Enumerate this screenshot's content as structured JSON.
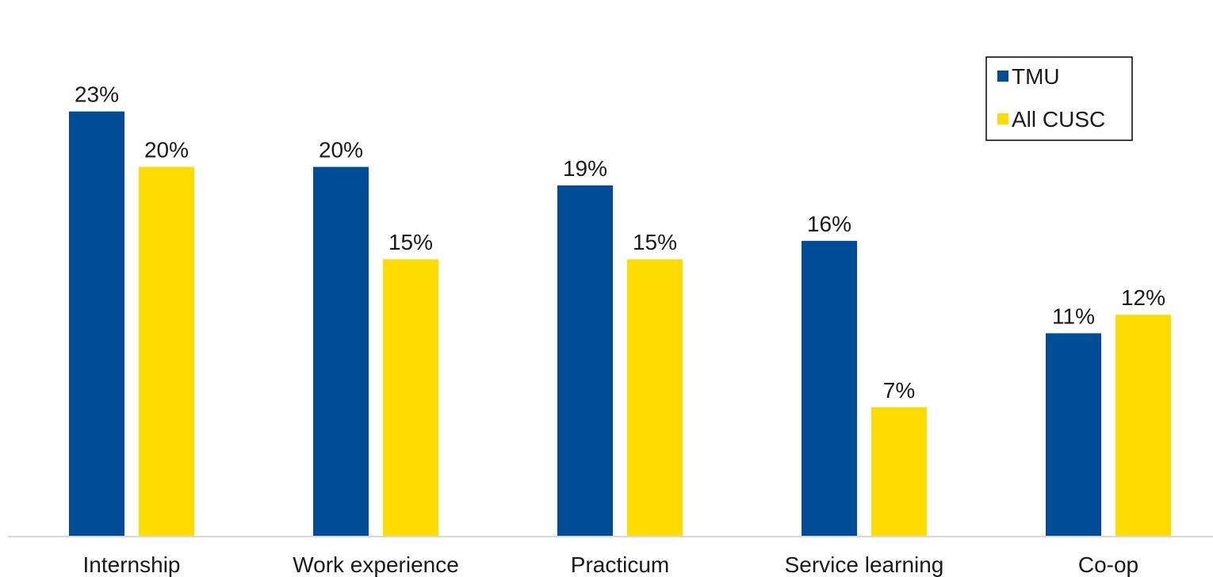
{
  "chart_data": {
    "type": "bar",
    "categories": [
      "Internship",
      "Work experience",
      "Practicum",
      "Service learning",
      "Co-op"
    ],
    "series": [
      {
        "name": "TMU",
        "values": [
          23,
          20,
          19,
          16,
          11
        ],
        "labels": [
          "23%",
          "20%",
          "19%",
          "16%",
          "11%"
        ],
        "color": "#004C97"
      },
      {
        "name": "All CUSC",
        "values": [
          20,
          15,
          15,
          7,
          12
        ],
        "labels": [
          "20%",
          "15%",
          "15%",
          "7%",
          "12%"
        ],
        "color": "#FFDC00"
      }
    ],
    "unit": "%",
    "ylim": [
      0,
      26.8
    ],
    "grid": false,
    "legend_position": "top-right",
    "title": "",
    "xlabel": "",
    "ylabel": ""
  }
}
